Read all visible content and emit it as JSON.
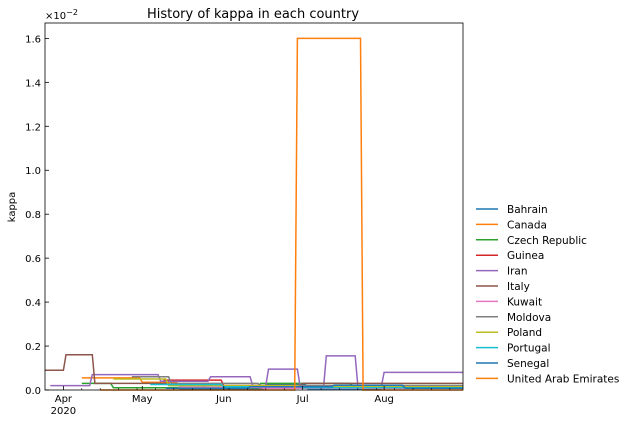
{
  "chart_data": {
    "type": "line",
    "title": "History of kappa in each country",
    "xlabel": "",
    "ylabel": "kappa",
    "y_exponent_label": "×10",
    "y_exponent_power": "−2",
    "x_range": [
      "2020-03-25",
      "2020-08-31"
    ],
    "ylim": [
      0,
      0.0167
    ],
    "x_ticks": [
      {
        "date": "2020-04-01",
        "label": "Apr",
        "sublabel": "2020"
      },
      {
        "date": "2020-05-01",
        "label": "May",
        "sublabel": ""
      },
      {
        "date": "2020-06-01",
        "label": "Jun",
        "sublabel": ""
      },
      {
        "date": "2020-07-01",
        "label": "Jul",
        "sublabel": ""
      },
      {
        "date": "2020-08-01",
        "label": "Aug",
        "sublabel": ""
      }
    ],
    "x_minor_ticks": [
      "2020-04-08",
      "2020-04-15",
      "2020-04-22",
      "2020-04-29",
      "2020-05-06",
      "2020-05-13",
      "2020-05-20",
      "2020-05-27",
      "2020-06-03",
      "2020-06-10",
      "2020-06-17",
      "2020-06-24",
      "2020-07-08",
      "2020-07-15",
      "2020-07-22",
      "2020-07-29",
      "2020-08-05",
      "2020-08-12",
      "2020-08-19",
      "2020-08-26"
    ],
    "y_ticks": [
      {
        "value": 0.0,
        "label": "0.0"
      },
      {
        "value": 0.002,
        "label": "0.2"
      },
      {
        "value": 0.004,
        "label": "0.4"
      },
      {
        "value": 0.006,
        "label": "0.6"
      },
      {
        "value": 0.008,
        "label": "0.8"
      },
      {
        "value": 0.01,
        "label": "1.0"
      },
      {
        "value": 0.012,
        "label": "1.2"
      },
      {
        "value": 0.014,
        "label": "1.4"
      },
      {
        "value": 0.016,
        "label": "1.6"
      }
    ],
    "grid": false,
    "legend_position": "outside right",
    "series": [
      {
        "name": "Bahrain",
        "color": "#1f77b4",
        "x": [
          "2020-05-15",
          "2020-06-16",
          "2020-06-17",
          "2020-07-02",
          "2020-07-03",
          "2020-07-31"
        ],
        "y": [
          3e-05,
          3e-05,
          0.00025,
          0.00025,
          5e-05,
          5e-05
        ]
      },
      {
        "name": "Canada",
        "color": "#ff7f0e",
        "x": [
          "2020-04-08",
          "2020-04-30",
          "2020-05-01",
          "2020-05-14",
          "2020-05-15",
          "2020-05-24",
          "2020-05-25",
          "2020-06-30"
        ],
        "y": [
          0.00055,
          0.00055,
          0.00035,
          0.00035,
          0.0002,
          0.0002,
          0.0001,
          0.0001
        ]
      },
      {
        "name": "Czech Republic",
        "color": "#2ca02c",
        "x": [
          "2020-04-08",
          "2020-04-19",
          "2020-04-20",
          "2020-06-14",
          "2020-06-15",
          "2020-07-19",
          "2020-07-20",
          "2020-08-31"
        ],
        "y": [
          0.0003,
          0.0003,
          0.0001,
          0.0001,
          0.0003,
          0.0003,
          0.0002,
          0.0002
        ]
      },
      {
        "name": "Guinea",
        "color": "#d62728",
        "x": [
          "2020-05-09",
          "2020-05-31",
          "2020-06-01",
          "2020-06-30",
          "2020-07-01",
          "2020-08-31"
        ],
        "y": [
          0.00045,
          0.00045,
          0.0002,
          0.0002,
          0.0001,
          0.0001
        ]
      },
      {
        "name": "Iran",
        "color": "#9467bd",
        "x": [
          "2020-03-27",
          "2020-04-11",
          "2020-04-12",
          "2020-05-07",
          "2020-05-08",
          "2020-05-26",
          "2020-05-27",
          "2020-06-11",
          "2020-06-12",
          "2020-06-17",
          "2020-06-18",
          "2020-06-29",
          "2020-06-30",
          "2020-07-09",
          "2020-07-10",
          "2020-07-21",
          "2020-07-22",
          "2020-07-31",
          "2020-08-01",
          "2020-08-31"
        ],
        "y": [
          0.0002,
          0.0002,
          0.0007,
          0.0007,
          0.0004,
          0.0004,
          0.0006,
          0.0006,
          0.0002,
          0.0002,
          0.00095,
          0.00095,
          0.0002,
          0.0002,
          0.00155,
          0.00155,
          0.0002,
          0.0002,
          0.0008,
          0.0008
        ]
      },
      {
        "name": "Italy",
        "color": "#8c564b",
        "x": [
          "2020-03-25",
          "2020-04-01",
          "2020-04-02",
          "2020-04-12",
          "2020-04-13",
          "2020-05-11",
          "2020-05-12",
          "2020-06-30",
          "2020-07-01",
          "2020-08-31"
        ],
        "y": [
          0.0009,
          0.0009,
          0.0016,
          0.0016,
          0.0003,
          0.0003,
          0.0002,
          0.0002,
          0.0003,
          0.0003
        ]
      },
      {
        "name": "Kuwait",
        "color": "#e377c2",
        "x": [
          "2020-05-15",
          "2020-06-15",
          "2020-06-16",
          "2020-08-31"
        ],
        "y": [
          0.00012,
          0.00012,
          8e-05,
          8e-05
        ]
      },
      {
        "name": "Moldova",
        "color": "#7f7f7f",
        "x": [
          "2020-04-27",
          "2020-05-11",
          "2020-05-12",
          "2020-06-14",
          "2020-06-15",
          "2020-08-31"
        ],
        "y": [
          0.0006,
          0.0006,
          0.0003,
          0.0003,
          0.0002,
          0.0002
        ]
      },
      {
        "name": "Poland",
        "color": "#bcbd22",
        "x": [
          "2020-04-20",
          "2020-05-10",
          "2020-05-11",
          "2020-06-29",
          "2020-06-30",
          "2020-08-31"
        ],
        "y": [
          0.0005,
          0.0005,
          0.0002,
          0.0002,
          0.00015,
          0.00015
        ]
      },
      {
        "name": "Portugal",
        "color": "#17becf",
        "x": [
          "2020-05-04",
          "2020-05-31",
          "2020-06-01",
          "2020-06-30",
          "2020-07-01",
          "2020-08-31"
        ],
        "y": [
          0.00025,
          0.00025,
          0.00015,
          0.00015,
          0.0001,
          0.0001
        ]
      },
      {
        "name": "Senegal",
        "color": "#1f77b4",
        "x": [
          "2020-05-10",
          "2020-06-10",
          "2020-06-11",
          "2020-07-12",
          "2020-07-13",
          "2020-08-08",
          "2020-08-09",
          "2020-08-31"
        ],
        "y": [
          8e-05,
          8e-05,
          0.00015,
          0.00015,
          0.00022,
          0.00022,
          8e-05,
          8e-05
        ]
      },
      {
        "name": "United Arab Emirates",
        "color": "#ff7f0e",
        "x": [
          "2020-04-15",
          "2020-06-28",
          "2020-06-29",
          "2020-07-23",
          "2020-07-24",
          "2020-08-31"
        ],
        "y": [
          0.0,
          0.0,
          0.016,
          0.016,
          0.0,
          0.0
        ]
      }
    ]
  }
}
